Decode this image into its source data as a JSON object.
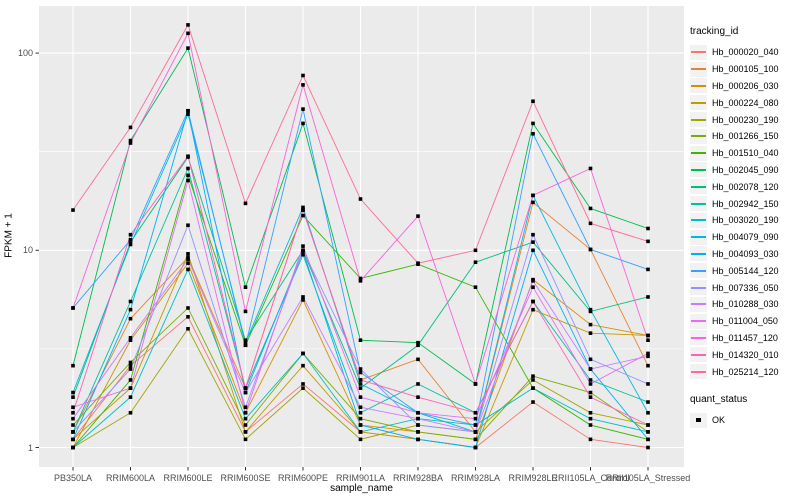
{
  "chart_data": {
    "type": "line",
    "title": "",
    "xlabel": "sample_name",
    "ylabel": "FPKM + 1",
    "y_scale": "log10",
    "ylim": [
      1,
      173
    ],
    "y_ticks": [
      "1",
      "10",
      "100"
    ],
    "y_minor_gridlines": [
      3.162,
      31.62
    ],
    "grid": "white on gray panel",
    "legend_position": "right",
    "marker_shape": "black-square",
    "categories": [
      "PB350LA",
      "RRIM600LA",
      "RRIM600LE",
      "RRIM600SE",
      "RRIM600PE",
      "RRIM901LA",
      "RRIM928BA",
      "RRIM928LA",
      "RRIM928LE",
      "RRII105LA_Control",
      "RRII105LA_Stressed"
    ],
    "series": [
      {
        "name": "Hb_000020_040",
        "color": "#F8766D",
        "values": [
          1.1,
          2.6,
          4.6,
          1.2,
          2.1,
          1.2,
          1.1,
          1.0,
          1.7,
          1.1,
          1.0
        ]
      },
      {
        "name": "Hb_000105_100",
        "color": "#EA8331",
        "values": [
          1.2,
          4.5,
          9.2,
          2.0,
          16.0,
          2.2,
          2.8,
          1.2,
          17.5,
          10.1,
          2.6
        ]
      },
      {
        "name": "Hb_000206_030",
        "color": "#D89000",
        "values": [
          1.0,
          3.5,
          8.6,
          1.5,
          5.6,
          1.3,
          1.2,
          1.1,
          7.1,
          4.2,
          3.7
        ]
      },
      {
        "name": "Hb_000224_080",
        "color": "#C09B00",
        "values": [
          1.1,
          2.0,
          9.6,
          1.2,
          2.6,
          1.2,
          1.1,
          1.0,
          5.0,
          3.8,
          3.7
        ]
      },
      {
        "name": "Hb_000230_190",
        "color": "#A3A500",
        "values": [
          1.0,
          1.5,
          4.0,
          1.1,
          2.0,
          1.1,
          1.3,
          1.2,
          2.2,
          1.5,
          1.3
        ]
      },
      {
        "name": "Hb_001266_150",
        "color": "#7CAE00",
        "values": [
          1.3,
          2.7,
          5.1,
          1.3,
          3.0,
          1.4,
          1.2,
          1.1,
          2.3,
          1.9,
          1.2
        ]
      },
      {
        "name": "Hb_001510_040",
        "color": "#39B600",
        "values": [
          1.0,
          2.2,
          24.0,
          3.3,
          15.0,
          7.2,
          8.5,
          6.5,
          2.0,
          1.3,
          1.1
        ]
      },
      {
        "name": "Hb_002045_090",
        "color": "#00BB4E",
        "values": [
          2.6,
          36.0,
          106.0,
          6.5,
          44.0,
          3.5,
          3.4,
          2.1,
          44.0,
          16.3,
          12.9
        ]
      },
      {
        "name": "Hb_002078_120",
        "color": "#00BF7D",
        "values": [
          1.8,
          11.0,
          29.7,
          3.5,
          10.0,
          2.0,
          3.3,
          8.7,
          11.0,
          4.9,
          5.8
        ]
      },
      {
        "name": "Hb_002942_150",
        "color": "#00C1A3",
        "values": [
          1.2,
          5.5,
          26.0,
          2.0,
          9.5,
          1.5,
          2.1,
          1.5,
          5.5,
          2.2,
          1.7
        ]
      },
      {
        "name": "Hb_003020_190",
        "color": "#00BFC4",
        "values": [
          1.0,
          1.8,
          8.0,
          1.4,
          3.0,
          1.2,
          1.4,
          1.3,
          2.0,
          1.4,
          1.2
        ]
      },
      {
        "name": "Hb_004079_090",
        "color": "#00BAE0",
        "values": [
          1.9,
          10.7,
          49.0,
          3.4,
          16.5,
          2.1,
          1.5,
          1.2,
          19.0,
          5.0,
          1.5
        ]
      },
      {
        "name": "Hb_004093_030",
        "color": "#00B0F6",
        "values": [
          1.1,
          5.0,
          51.0,
          1.9,
          9.9,
          1.3,
          1.1,
          1.0,
          10.0,
          2.5,
          1.1
        ]
      },
      {
        "name": "Hb_005144_120",
        "color": "#35A2FF",
        "values": [
          5.1,
          11.3,
          51.0,
          3.3,
          52.0,
          2.4,
          1.5,
          1.3,
          39.0,
          10.1,
          8.0
        ]
      },
      {
        "name": "Hb_007336_050",
        "color": "#9590FF",
        "values": [
          1.2,
          2.5,
          13.4,
          1.6,
          10.0,
          2.5,
          1.3,
          1.2,
          12.0,
          2.8,
          2.1
        ]
      },
      {
        "name": "Hb_010288_030",
        "color": "#C77CFF",
        "values": [
          1.4,
          3.6,
          9.0,
          1.9,
          5.8,
          1.6,
          1.4,
          1.2,
          7.0,
          2.5,
          2.9
        ]
      },
      {
        "name": "Hb_011004_050",
        "color": "#E76BF3",
        "values": [
          1.6,
          2.0,
          22.6,
          1.5,
          10.5,
          1.8,
          1.5,
          1.4,
          6.5,
          2.1,
          3.0
        ]
      },
      {
        "name": "Hb_011457_120",
        "color": "#FA62DB",
        "values": [
          5.1,
          35.0,
          126.0,
          4.9,
          69.0,
          7.0,
          14.9,
          2.1,
          19.0,
          26.0,
          3.5
        ]
      },
      {
        "name": "Hb_014320_010",
        "color": "#FF62BC",
        "values": [
          1.5,
          12.0,
          30.0,
          2.0,
          16.0,
          2.2,
          1.8,
          1.5,
          5.5,
          1.8,
          1.3
        ]
      },
      {
        "name": "Hb_025214_120",
        "color": "#FF6A98",
        "values": [
          16.0,
          42.0,
          139.0,
          17.3,
          77.0,
          18.2,
          8.6,
          10.0,
          57.0,
          13.7,
          11.1
        ]
      }
    ]
  },
  "legend": {
    "tracking_title": "tracking_id",
    "quant_title": "quant_status",
    "quant_items": [
      "OK"
    ]
  },
  "colors": {
    "panel_bg": "#EBEBEB",
    "gridline": "#FFFFFF",
    "axis_text": "#4D4D4D",
    "axis_title": "#000000",
    "marker": "#000000",
    "legend_key_bg": "#F2F2F2",
    "tick": "#333333"
  }
}
